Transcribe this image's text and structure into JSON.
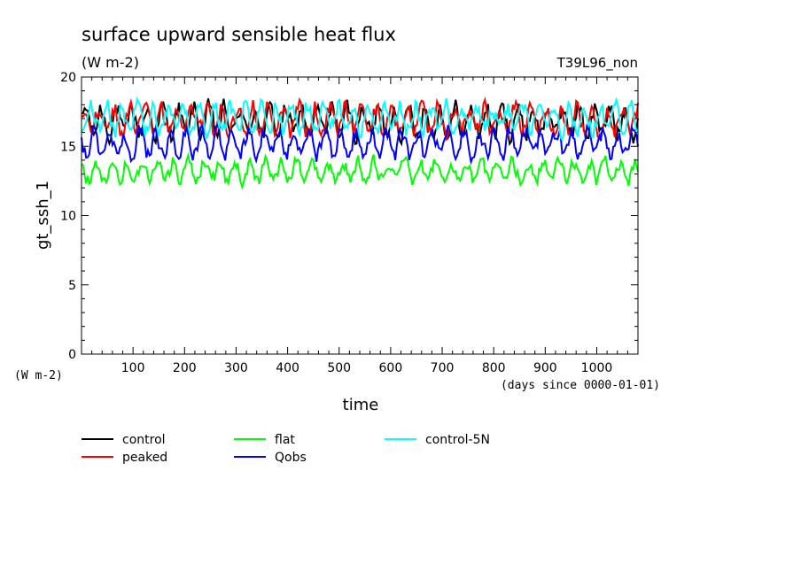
{
  "chart_data": {
    "type": "line",
    "title": "surface upward sensible heat flux",
    "subtitle": "(W m-2)",
    "run_label": "T39L96_non",
    "ylabel": "gt_ssh_1",
    "y_units": "(W m-2)",
    "xlabel": "time",
    "x_units": "(days since 0000-01-01)",
    "xlim": [
      0,
      1080
    ],
    "ylim": [
      0,
      20
    ],
    "x_ticks": [
      100,
      200,
      300,
      400,
      500,
      600,
      700,
      800,
      900,
      1000
    ],
    "y_ticks": [
      0,
      5,
      10,
      15,
      20
    ],
    "grid": false,
    "legend_position": "bottom",
    "sample_interval_days": 3,
    "series": [
      {
        "name": "control",
        "color": "#000000",
        "mean": 16.8,
        "amplitude": 1.4
      },
      {
        "name": "peaked",
        "color": "#ff0000",
        "mean": 16.9,
        "amplitude": 1.3
      },
      {
        "name": "flat",
        "color": "#00ff00",
        "mean": 13.2,
        "amplitude": 1.0
      },
      {
        "name": "Qobs",
        "color": "#0000ff",
        "mean": 15.2,
        "amplitude": 1.2
      },
      {
        "name": "control-5N",
        "color": "#00ffff",
        "mean": 17.0,
        "amplitude": 1.3
      }
    ]
  }
}
